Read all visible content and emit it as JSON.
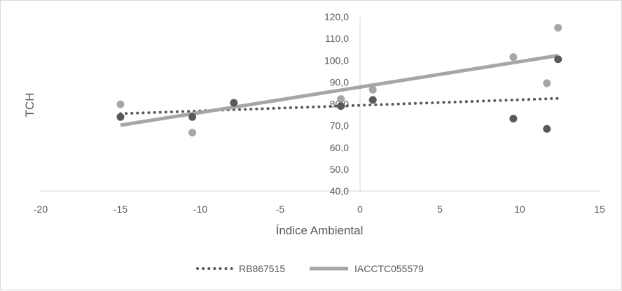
{
  "chart_data": {
    "type": "scatter",
    "xlabel": "Índice Ambiental",
    "ylabel": "TCH",
    "xlim": [
      -20,
      15
    ],
    "ylim": [
      40,
      120
    ],
    "x_ticks": [
      "-20",
      "-15",
      "-10",
      "-5",
      "0",
      "5",
      "10",
      "15"
    ],
    "y_ticks": [
      "40,0",
      "50,0",
      "60,0",
      "70,0",
      "80,0",
      "90,0",
      "100,0",
      "110,0",
      "120,0"
    ],
    "grid": false,
    "legend_position": "bottom",
    "series": [
      {
        "name": "RB867515",
        "color": "#595959",
        "marker": "circle",
        "trendline": {
          "style": "dotted",
          "x_range": [
            -15,
            12.4
          ],
          "y_range": [
            75.5,
            82.5
          ]
        },
        "points": [
          {
            "x": -15.0,
            "y": 74.0
          },
          {
            "x": -10.5,
            "y": 74.0
          },
          {
            "x": -7.9,
            "y": 80.5
          },
          {
            "x": -1.2,
            "y": 79.0
          },
          {
            "x": 0.8,
            "y": 81.8
          },
          {
            "x": 9.6,
            "y": 73.2
          },
          {
            "x": 11.7,
            "y": 68.5
          },
          {
            "x": 12.4,
            "y": 100.5
          }
        ]
      },
      {
        "name": "IACCTC055579",
        "color": "#a6a6a6",
        "marker": "circle",
        "trendline": {
          "style": "solid",
          "x_range": [
            -15,
            12.4
          ],
          "y_range": [
            70.2,
            102.2
          ]
        },
        "points": [
          {
            "x": -15.0,
            "y": 79.8
          },
          {
            "x": -10.5,
            "y": 66.8
          },
          {
            "x": -1.2,
            "y": 82.2
          },
          {
            "x": 0.8,
            "y": 86.5
          },
          {
            "x": 9.6,
            "y": 101.5
          },
          {
            "x": 11.7,
            "y": 89.5
          },
          {
            "x": 12.4,
            "y": 115.0
          }
        ]
      }
    ]
  }
}
